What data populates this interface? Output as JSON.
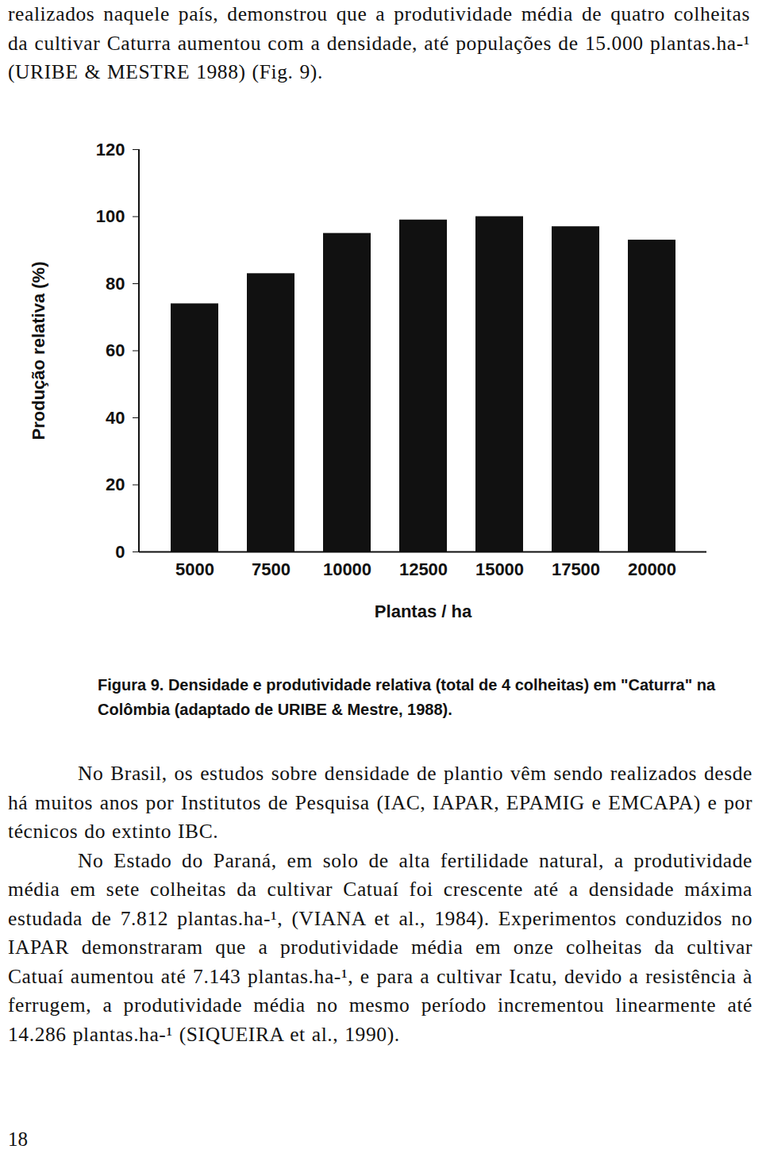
{
  "text_top": "realizados naquele país, demonstrou que a produtividade média de quatro colheitas da cultivar Caturra aumentou com a densidade, até populações de 15.000 plantas.ha-¹ (URIBE & MESTRE 1988) (Fig. 9).",
  "chart_data": {
    "type": "bar",
    "categories": [
      "5000",
      "7500",
      "10000",
      "12500",
      "15000",
      "17500",
      "20000"
    ],
    "values": [
      74,
      83,
      95,
      99,
      100,
      97,
      93
    ],
    "color": "#111111",
    "x_label": "Plantas / ha",
    "y_label": "Produção relativa (%)",
    "ylim": [
      0,
      120
    ],
    "yticks": [
      0,
      20,
      40,
      60,
      80,
      100,
      120
    ],
    "grid": false
  },
  "caption": {
    "label": "Figura 9.",
    "text": "Densidade e produtividade relativa (total de 4 colheitas) em \"Caturra\" na Colômbia (adaptado de URIBE & Mestre, 1988)."
  },
  "body": [
    "No Brasil, os estudos sobre densidade de plantio vêm sendo realizados desde há muitos anos por Institutos de Pesquisa (IAC, IAPAR, EPAMIG e EMCAPA) e por técnicos do extinto IBC.",
    "No Estado do Paraná, em solo de alta fertilidade natural, a produtividade média em sete colheitas da cultivar Catuaí foi crescente até a densidade máxima estudada de 7.812 plantas.ha-¹, (VIANA et al., 1984). Experimentos conduzidos no IAPAR demonstraram que a produtividade média em onze colheitas da cultivar Catuaí aumentou até 7.143 plantas.ha-¹, e para a cultivar Icatu, devido a resistência à ferrugem, a produtividade média no mesmo período incrementou linearmente até 14.286 plantas.ha-¹ (SIQUEIRA et al., 1990)."
  ],
  "page_number": "18"
}
